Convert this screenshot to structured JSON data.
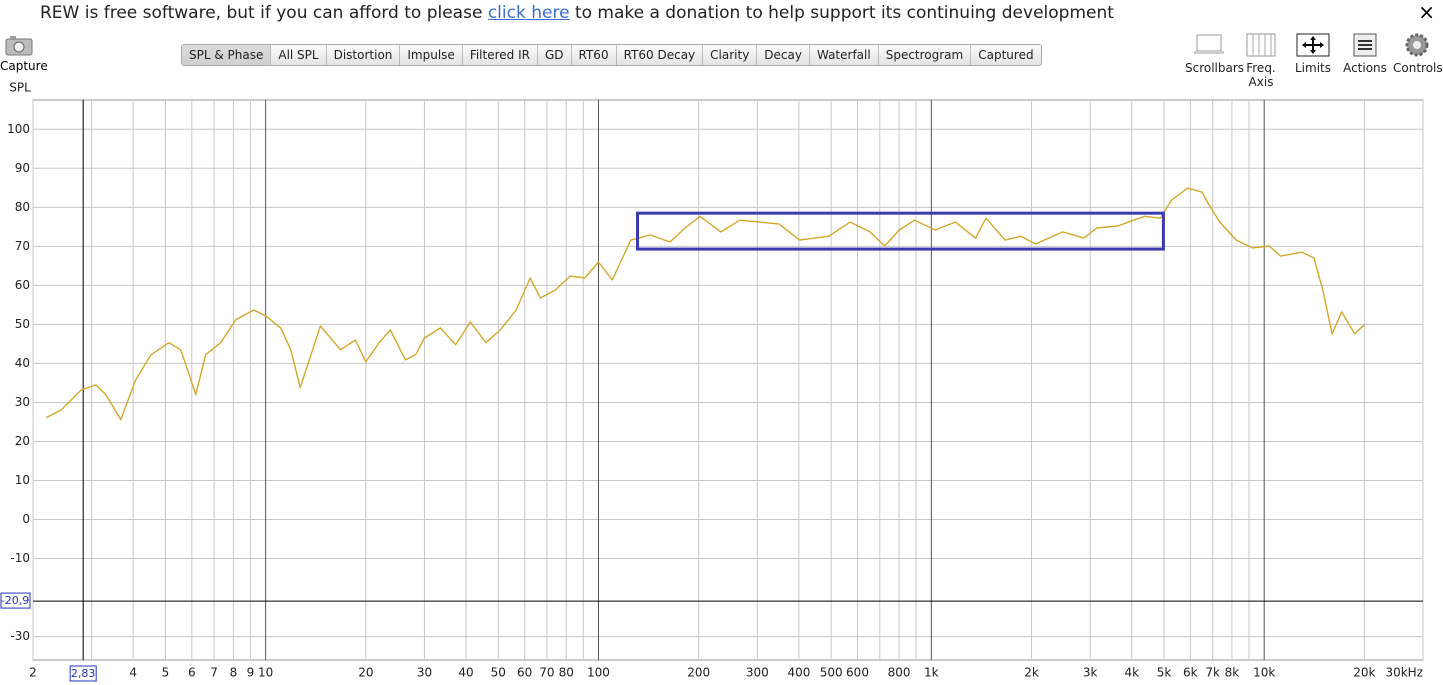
{
  "banner": {
    "text_before": "REW is free software, but if you can afford to please",
    "link": "click here",
    "text_after": "to make a donation to help support its continuing development",
    "close": "×"
  },
  "capture": "Capture",
  "tabs": [
    "SPL & Phase",
    "All SPL",
    "Distortion",
    "Impulse",
    "Filtered IR",
    "GD",
    "RT60",
    "RT60 Decay",
    "Clarity",
    "Decay",
    "Waterfall",
    "Spectrogram",
    "Captured"
  ],
  "toolbar": [
    "Scrollbars",
    "Freq. Axis",
    "Limits",
    "Actions",
    "Controls"
  ],
  "chart_data": {
    "type": "line",
    "y_label": "SPL",
    "log_x": true,
    "grid": true,
    "xlim": [
      2,
      30000
    ],
    "ylim": [
      -36,
      107.5
    ],
    "xticks": [
      2,
      4,
      5,
      6,
      7,
      8,
      9,
      10,
      20,
      30,
      40,
      50,
      60,
      70,
      80,
      100,
      200,
      300,
      400,
      500,
      600,
      800,
      {
        "value": 1000,
        "label": "1k"
      },
      {
        "value": 2000,
        "label": "2k"
      },
      {
        "value": 3000,
        "label": "3k"
      },
      {
        "value": 4000,
        "label": "4k"
      },
      {
        "value": 5000,
        "label": "5k"
      },
      {
        "value": 6000,
        "label": "6k"
      },
      {
        "value": 7000,
        "label": "7k"
      },
      {
        "value": 8000,
        "label": "8k"
      },
      {
        "value": 10000,
        "label": "10k"
      },
      {
        "value": 20000,
        "label": "20k"
      },
      {
        "value": 30000,
        "label": "30kHz"
      }
    ],
    "xminor": [
      3,
      90,
      700,
      900,
      9000
    ],
    "yticks": [
      100,
      90,
      80,
      70,
      60,
      50,
      40,
      30,
      20,
      10,
      0,
      -10,
      -30
    ],
    "cursor": {
      "x": {
        "value": 2.83,
        "label": "2,83"
      },
      "y": {
        "value": -20.9,
        "label": "-20,9"
      }
    },
    "highlight": {
      "x": [
        131,
        4980
      ],
      "y": [
        69.3,
        78.5
      ],
      "color": "#3b3bb0"
    },
    "x": [
      2.19,
      2.43,
      2.79,
      3.09,
      3.31,
      3.67,
      4.07,
      4.52,
      5.12,
      5.56,
      6.17,
      6.6,
      7.33,
      8.13,
      9.2,
      10,
      11.1,
      11.9,
      12.7,
      14.6,
      16.8,
      18.6,
      20,
      22,
      23.7,
      26.3,
      28.2,
      30,
      33.5,
      37.2,
      41.2,
      45.9,
      50.7,
      56.6,
      62.3,
      66.9,
      74.2,
      82.3,
      91,
      100,
      110,
      125,
      143,
      164,
      182,
      202,
      233,
      266,
      305,
      349,
      402,
      492,
      570,
      654,
      724,
      801,
      890,
      1028,
      1180,
      1358,
      1460,
      1666,
      1858,
      2057,
      2480,
      2875,
      3140,
      3630,
      4372,
      4880,
      5260,
      5880,
      6500,
      6830,
      7360,
      8240,
      9230,
      10350,
      11200,
      13000,
      14100,
      15000,
      16000,
      17100,
      18700,
      20000
    ],
    "series": [
      {
        "name": "SPL",
        "color": "#d4a82c",
        "values": [
          26.1,
          28.1,
          33.2,
          34.5,
          32,
          25.6,
          35.8,
          42.2,
          45.3,
          43.5,
          32,
          42.2,
          45.3,
          51.2,
          53.7,
          52.2,
          49.1,
          43.5,
          33.8,
          49.6,
          43.5,
          46,
          40.4,
          45.5,
          48.6,
          40.9,
          42.2,
          46.5,
          49.1,
          44.8,
          50.6,
          45.3,
          48.6,
          53.7,
          61.9,
          56.8,
          58.8,
          62.4,
          61.9,
          66,
          61.4,
          71.6,
          72.9,
          71.1,
          74.7,
          77.7,
          73.7,
          76.7,
          76.2,
          75.7,
          71.6,
          72.6,
          76.2,
          73.7,
          70.1,
          74.2,
          76.7,
          74.2,
          76.2,
          72.1,
          77.2,
          71.6,
          72.6,
          70.6,
          73.7,
          72.1,
          74.7,
          75.2,
          77.7,
          77.2,
          81.8,
          84.9,
          83.9,
          80.6,
          76.2,
          71.6,
          69.6,
          70.1,
          67.5,
          68.5,
          67,
          58.8,
          47.6,
          53.2,
          47.6,
          49.9
        ]
      }
    ]
  }
}
